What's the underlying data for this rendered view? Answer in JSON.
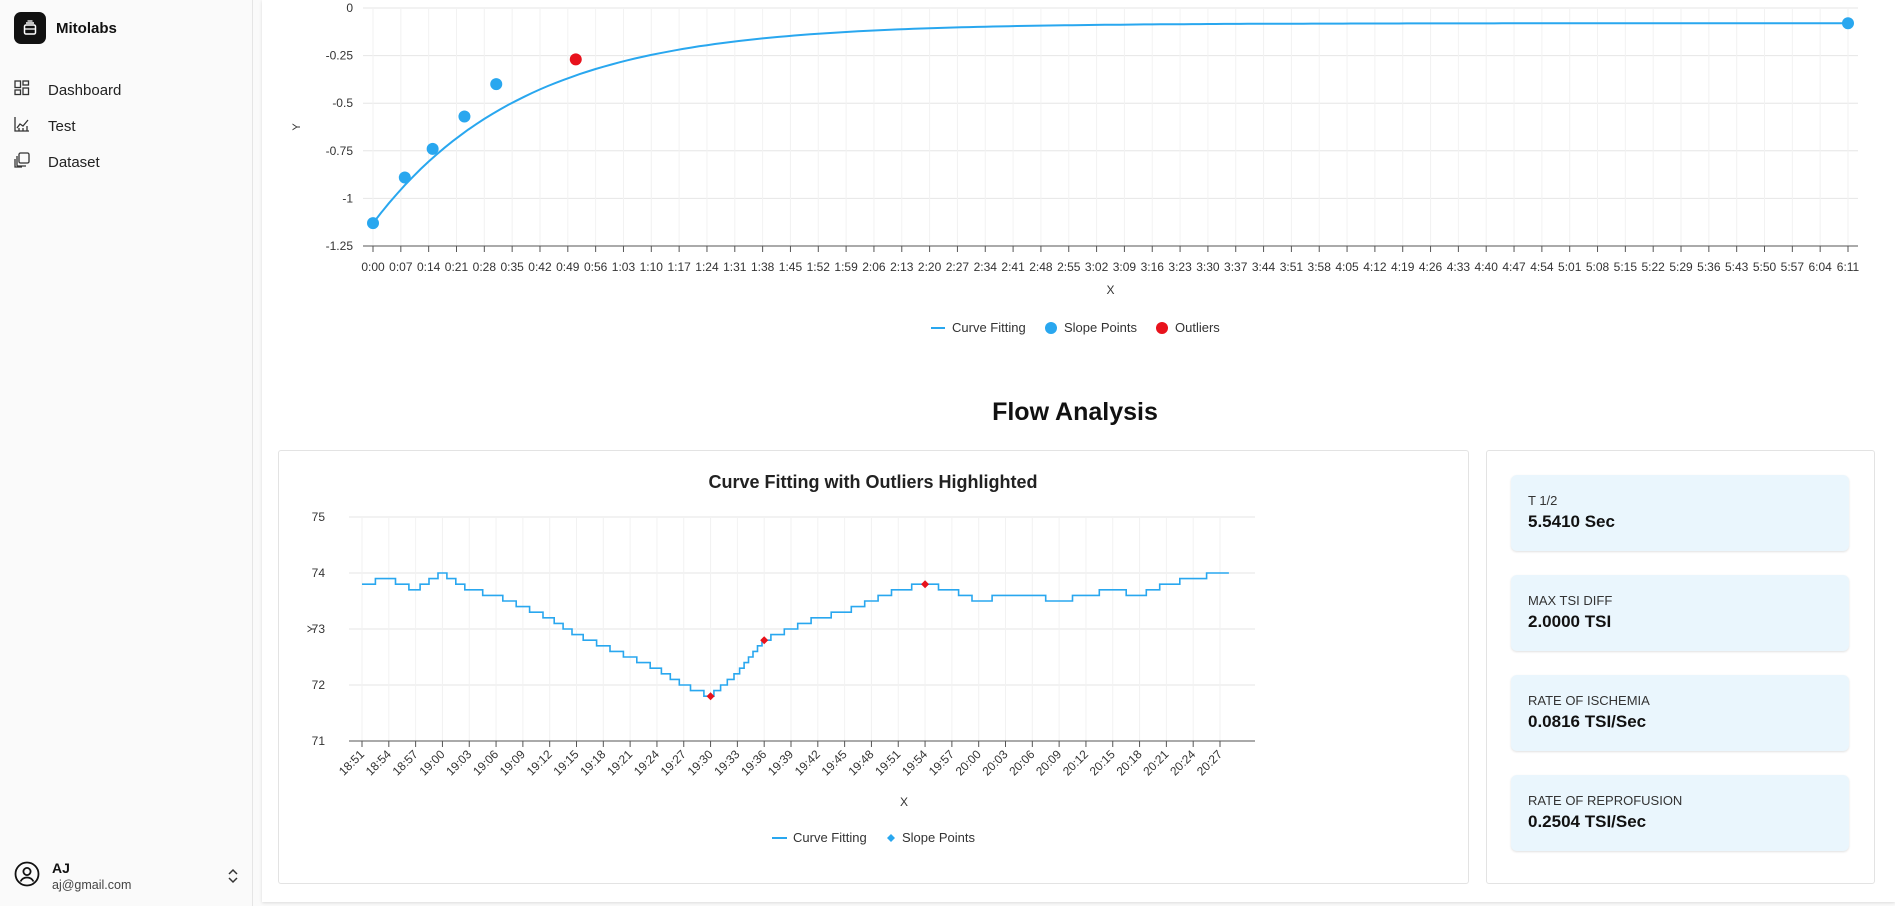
{
  "brand": {
    "name": "Mitolabs"
  },
  "sidebar": {
    "items": [
      {
        "label": "Dashboard",
        "icon": "dashboard-icon"
      },
      {
        "label": "Test",
        "icon": "chart-line-icon"
      },
      {
        "label": "Dataset",
        "icon": "dataset-icon"
      }
    ]
  },
  "user": {
    "name": "AJ",
    "email": "aj@gmail.com"
  },
  "section": {
    "title": "Flow Analysis"
  },
  "metrics": [
    {
      "label": "T 1/2",
      "value": "5.5410 Sec"
    },
    {
      "label": "MAX TSI DIFF",
      "value": "2.0000 TSI"
    },
    {
      "label": "RATE OF ISCHEMIA",
      "value": "0.0816 TSI/Sec"
    },
    {
      "label": "RATE OF REPROFUSION",
      "value": "0.2504 TSI/Sec"
    }
  ],
  "colors": {
    "series": "#29a7ef",
    "outlier": "#e8121c",
    "metric_bg": "#eaf6fd"
  },
  "chart_data": [
    {
      "type": "line",
      "title": "",
      "xlabel": "X",
      "ylabel": "Y",
      "ylim": [
        -1.25,
        0
      ],
      "yticks": [
        "0",
        "-0.25",
        "-0.5",
        "-0.75",
        "-1",
        "-1.25"
      ],
      "x_ticks": [
        "0:00",
        "0:07",
        "0:14",
        "0:21",
        "0:28",
        "0:35",
        "0:42",
        "0:49",
        "0:56",
        "1:03",
        "1:10",
        "1:17",
        "1:24",
        "1:31",
        "1:38",
        "1:45",
        "1:52",
        "1:59",
        "2:06",
        "2:13",
        "2:20",
        "2:27",
        "2:34",
        "2:41",
        "2:48",
        "2:55",
        "3:02",
        "3:09",
        "3:16",
        "3:23",
        "3:30",
        "3:37",
        "3:44",
        "3:51",
        "3:58",
        "4:05",
        "4:12",
        "4:19",
        "4:26",
        "4:33",
        "4:40",
        "4:47",
        "4:54",
        "5:01",
        "5:08",
        "5:15",
        "5:22",
        "5:29",
        "5:36",
        "5:43",
        "5:50",
        "5:57",
        "6:04",
        "6:11"
      ],
      "legend": [
        "Curve Fitting",
        "Slope Points",
        "Outliers"
      ],
      "series": [
        {
          "name": "Slope Points",
          "points": [
            [
              "0:00",
              -1.13
            ],
            [
              "0:08",
              -0.89
            ],
            [
              "0:15",
              -0.74
            ],
            [
              "0:23",
              -0.57
            ],
            [
              "0:31",
              -0.4
            ],
            [
              "6:11",
              -0.08
            ]
          ]
        },
        {
          "name": "Outliers",
          "points": [
            [
              "0:51",
              -0.27
            ]
          ]
        }
      ]
    },
    {
      "type": "line",
      "title": "Curve Fitting with Outliers Highlighted",
      "xlabel": "X",
      "ylabel": "Y",
      "ylim": [
        71,
        75
      ],
      "yticks": [
        "75",
        "74",
        "73",
        "72",
        "71"
      ],
      "x_ticks": [
        "18:51",
        "18:54",
        "18:57",
        "19:00",
        "19:03",
        "19:06",
        "19:09",
        "19:12",
        "19:15",
        "19:18",
        "19:21",
        "19:24",
        "19:27",
        "19:30",
        "19:33",
        "19:36",
        "19:39",
        "19:42",
        "19:45",
        "19:48",
        "19:51",
        "19:54",
        "19:57",
        "20:00",
        "20:03",
        "20:06",
        "20:09",
        "20:12",
        "20:15",
        "20:18",
        "20:21",
        "20:24",
        "20:27"
      ],
      "legend": [
        "Curve Fitting",
        "Slope Points"
      ],
      "series": [
        {
          "name": "Curve Fitting",
          "points": [
            [
              "18:51",
              73.8
            ],
            [
              "18:54",
              73.9
            ],
            [
              "18:57",
              73.7
            ],
            [
              "19:00",
              74.0
            ],
            [
              "19:03",
              73.7
            ],
            [
              "19:06",
              73.6
            ],
            [
              "19:09",
              73.4
            ],
            [
              "19:12",
              73.2
            ],
            [
              "19:15",
              72.9
            ],
            [
              "19:18",
              72.7
            ],
            [
              "19:21",
              72.5
            ],
            [
              "19:24",
              72.3
            ],
            [
              "19:27",
              72.0
            ],
            [
              "19:30",
              71.8
            ],
            [
              "19:33",
              72.2
            ],
            [
              "19:36",
              72.8
            ],
            [
              "19:39",
              73.0
            ],
            [
              "19:42",
              73.2
            ],
            [
              "19:45",
              73.3
            ],
            [
              "19:48",
              73.5
            ],
            [
              "19:51",
              73.7
            ],
            [
              "19:54",
              73.8
            ],
            [
              "19:57",
              73.7
            ],
            [
              "20:00",
              73.5
            ],
            [
              "20:03",
              73.6
            ],
            [
              "20:06",
              73.6
            ],
            [
              "20:09",
              73.5
            ],
            [
              "20:12",
              73.6
            ],
            [
              "20:15",
              73.7
            ],
            [
              "20:18",
              73.6
            ],
            [
              "20:21",
              73.8
            ],
            [
              "20:24",
              73.9
            ],
            [
              "20:27",
              74.0
            ]
          ]
        },
        {
          "name": "Outliers",
          "points": [
            [
              "19:30",
              71.8
            ],
            [
              "19:36",
              72.8
            ],
            [
              "19:54",
              73.8
            ]
          ]
        }
      ]
    }
  ]
}
